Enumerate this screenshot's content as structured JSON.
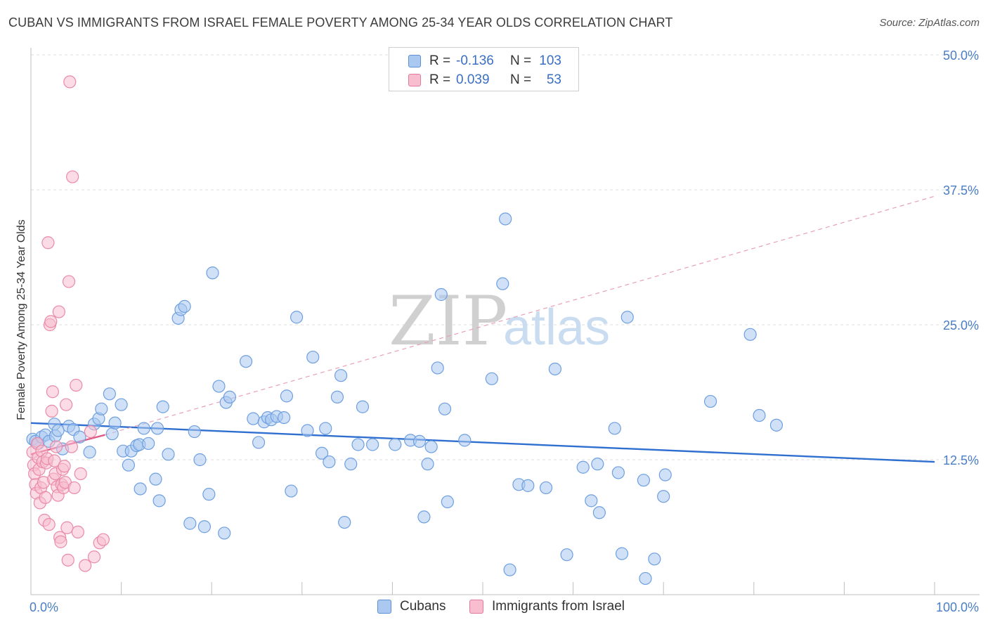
{
  "header": {
    "title": "CUBAN VS IMMIGRANTS FROM ISRAEL FEMALE POVERTY AMONG 25-34 YEAR OLDS CORRELATION CHART",
    "source": "Source: ZipAtlas.com"
  },
  "watermark": {
    "zip": "ZIP",
    "atlas": "atlas"
  },
  "legend": {
    "rows": [
      {
        "r_label": "R =",
        "r_value": "-0.136",
        "n_label": "N =",
        "n_value": "103",
        "color": "#aac8f0",
        "border": "#5b8fd6"
      },
      {
        "r_label": "R =",
        "r_value": "0.039",
        "n_label": "N =",
        "n_value": "53",
        "color": "#f8bed0",
        "border": "#e17a9c"
      }
    ]
  },
  "bottom_legend": [
    {
      "label": "Cubans",
      "color": "#aac8f0",
      "border": "#5b8fd6"
    },
    {
      "label": "Immigrants from Israel",
      "color": "#f8bed0",
      "border": "#e17a9c"
    }
  ],
  "chart_data": {
    "type": "scatter",
    "title": "CUBAN VS IMMIGRANTS FROM ISRAEL FEMALE POVERTY AMONG 25-34 YEAR OLDS CORRELATION CHART",
    "xlabel": "",
    "ylabel": "Female Poverty Among 25-34 Year Olds",
    "xlim": [
      0,
      100
    ],
    "ylim": [
      0,
      50
    ],
    "x_ticks": [
      {
        "value": 0,
        "label": "0.0%"
      },
      {
        "value": 100,
        "label": "100.0%"
      }
    ],
    "y_ticks": [
      {
        "value": 12.5,
        "label": "12.5%"
      },
      {
        "value": 25,
        "label": "25.0%"
      },
      {
        "value": 37.5,
        "label": "37.5%"
      },
      {
        "value": 50,
        "label": "50.0%"
      }
    ],
    "grid": true,
    "legend_position": "top-center",
    "series": [
      {
        "name": "Cubans",
        "color": "#6e9fe0",
        "fill": "#aac8f0",
        "trend": {
          "x": [
            0,
            100
          ],
          "y": [
            15.9,
            12.3
          ],
          "style": "solid",
          "color": "#2f6fd0"
        },
        "points": [
          [
            0.2,
            14.4
          ],
          [
            0.5,
            14.2
          ],
          [
            0.8,
            14.0
          ],
          [
            1.2,
            14.6
          ],
          [
            1.6,
            14.8
          ],
          [
            2.0,
            14.2
          ],
          [
            2.6,
            15.8
          ],
          [
            2.7,
            14.7
          ],
          [
            3.0,
            15.2
          ],
          [
            3.5,
            13.5
          ],
          [
            4.2,
            15.6
          ],
          [
            4.7,
            15.3
          ],
          [
            5.4,
            14.6
          ],
          [
            6.5,
            13.2
          ],
          [
            7.0,
            15.8
          ],
          [
            7.5,
            16.3
          ],
          [
            7.8,
            17.2
          ],
          [
            8.7,
            18.6
          ],
          [
            9.0,
            14.9
          ],
          [
            9.3,
            15.9
          ],
          [
            10.0,
            17.6
          ],
          [
            10.2,
            13.3
          ],
          [
            10.8,
            12.0
          ],
          [
            11.1,
            13.3
          ],
          [
            11.7,
            13.8
          ],
          [
            12.0,
            13.9
          ],
          [
            12.1,
            9.8
          ],
          [
            12.5,
            15.4
          ],
          [
            13.0,
            14.0
          ],
          [
            13.8,
            10.7
          ],
          [
            14.0,
            15.4
          ],
          [
            14.2,
            8.7
          ],
          [
            14.6,
            17.4
          ],
          [
            15.2,
            13.0
          ],
          [
            16.3,
            25.6
          ],
          [
            16.6,
            26.4
          ],
          [
            17.0,
            26.7
          ],
          [
            17.6,
            6.6
          ],
          [
            18.1,
            15.1
          ],
          [
            18.7,
            12.5
          ],
          [
            19.2,
            6.3
          ],
          [
            19.7,
            9.3
          ],
          [
            20.1,
            29.8
          ],
          [
            20.8,
            19.3
          ],
          [
            21.4,
            5.7
          ],
          [
            21.6,
            17.8
          ],
          [
            22.0,
            18.3
          ],
          [
            23.8,
            21.6
          ],
          [
            24.6,
            16.3
          ],
          [
            25.2,
            14.1
          ],
          [
            25.8,
            16.0
          ],
          [
            26.2,
            16.4
          ],
          [
            26.6,
            16.2
          ],
          [
            27.2,
            16.5
          ],
          [
            28.0,
            16.4
          ],
          [
            28.3,
            18.4
          ],
          [
            28.8,
            9.6
          ],
          [
            29.4,
            25.7
          ],
          [
            30.6,
            15.2
          ],
          [
            31.2,
            22.0
          ],
          [
            32.2,
            13.1
          ],
          [
            32.6,
            15.4
          ],
          [
            33.0,
            12.3
          ],
          [
            33.9,
            18.3
          ],
          [
            34.3,
            20.3
          ],
          [
            34.7,
            6.7
          ],
          [
            35.4,
            12.1
          ],
          [
            36.2,
            13.9
          ],
          [
            36.7,
            17.4
          ],
          [
            37.8,
            13.9
          ],
          [
            40.3,
            13.9
          ],
          [
            42.0,
            14.3
          ],
          [
            43.0,
            14.2
          ],
          [
            43.5,
            7.2
          ],
          [
            43.9,
            12.1
          ],
          [
            44.3,
            13.7
          ],
          [
            45.0,
            21.0
          ],
          [
            45.4,
            27.8
          ],
          [
            45.8,
            17.2
          ],
          [
            46.1,
            8.6
          ],
          [
            48.0,
            14.3
          ],
          [
            51.0,
            20.0
          ],
          [
            52.2,
            28.8
          ],
          [
            52.5,
            34.8
          ],
          [
            53.0,
            2.3
          ],
          [
            54.0,
            10.2
          ],
          [
            55.0,
            10.1
          ],
          [
            57.0,
            9.9
          ],
          [
            58.0,
            20.9
          ],
          [
            59.3,
            3.7
          ],
          [
            61.1,
            11.8
          ],
          [
            62.0,
            8.7
          ],
          [
            62.7,
            12.1
          ],
          [
            62.9,
            7.6
          ],
          [
            64.6,
            15.4
          ],
          [
            65.0,
            11.3
          ],
          [
            65.4,
            3.8
          ],
          [
            66.0,
            25.7
          ],
          [
            67.8,
            10.6
          ],
          [
            68.0,
            1.5
          ],
          [
            69.0,
            3.3
          ],
          [
            70.0,
            9.1
          ],
          [
            70.2,
            11.1
          ],
          [
            75.2,
            17.9
          ],
          [
            79.6,
            24.1
          ],
          [
            80.6,
            16.6
          ],
          [
            82.5,
            15.7
          ]
        ]
      },
      {
        "name": "Immigrants from Israel",
        "color": "#ea8aa8",
        "fill": "#f8bed0",
        "trend": {
          "x": [
            0,
            8.2
          ],
          "y": [
            13.0,
            14.8
          ],
          "style": "solid",
          "color": "#e05a88"
        },
        "trend_extended": {
          "x": [
            8.2,
            100
          ],
          "y": [
            14.8,
            36.9
          ],
          "style": "dashed",
          "color": "#e8a0b8"
        },
        "points": [
          [
            0.2,
            13.2
          ],
          [
            0.3,
            12.0
          ],
          [
            0.4,
            11.2
          ],
          [
            0.5,
            10.2
          ],
          [
            0.6,
            9.4
          ],
          [
            0.7,
            14.0
          ],
          [
            0.8,
            12.7
          ],
          [
            0.9,
            11.6
          ],
          [
            1.0,
            8.5
          ],
          [
            1.1,
            9.9
          ],
          [
            1.2,
            13.3
          ],
          [
            1.3,
            12.3
          ],
          [
            1.4,
            10.4
          ],
          [
            1.5,
            6.9
          ],
          [
            1.6,
            9.0
          ],
          [
            1.7,
            12.2
          ],
          [
            1.8,
            12.6
          ],
          [
            1.9,
            32.6
          ],
          [
            2.0,
            6.5
          ],
          [
            2.1,
            25.0
          ],
          [
            2.2,
            25.3
          ],
          [
            2.3,
            17.0
          ],
          [
            2.4,
            18.8
          ],
          [
            2.5,
            10.7
          ],
          [
            2.6,
            12.4
          ],
          [
            2.7,
            11.2
          ],
          [
            2.8,
            13.7
          ],
          [
            2.9,
            10.0
          ],
          [
            3.0,
            9.2
          ],
          [
            3.1,
            26.2
          ],
          [
            3.2,
            5.3
          ],
          [
            3.3,
            4.9
          ],
          [
            3.4,
            10.2
          ],
          [
            3.5,
            11.6
          ],
          [
            3.6,
            9.9
          ],
          [
            3.7,
            11.9
          ],
          [
            3.8,
            10.4
          ],
          [
            3.9,
            17.6
          ],
          [
            4.0,
            6.2
          ],
          [
            4.1,
            3.2
          ],
          [
            4.2,
            29.0
          ],
          [
            4.3,
            47.5
          ],
          [
            4.5,
            13.7
          ],
          [
            4.6,
            38.7
          ],
          [
            4.8,
            9.9
          ],
          [
            5.0,
            19.4
          ],
          [
            5.2,
            5.8
          ],
          [
            5.5,
            11.2
          ],
          [
            6.0,
            2.7
          ],
          [
            6.6,
            15.1
          ],
          [
            7.0,
            3.5
          ],
          [
            7.6,
            4.8
          ],
          [
            8.0,
            5.1
          ]
        ]
      }
    ]
  }
}
